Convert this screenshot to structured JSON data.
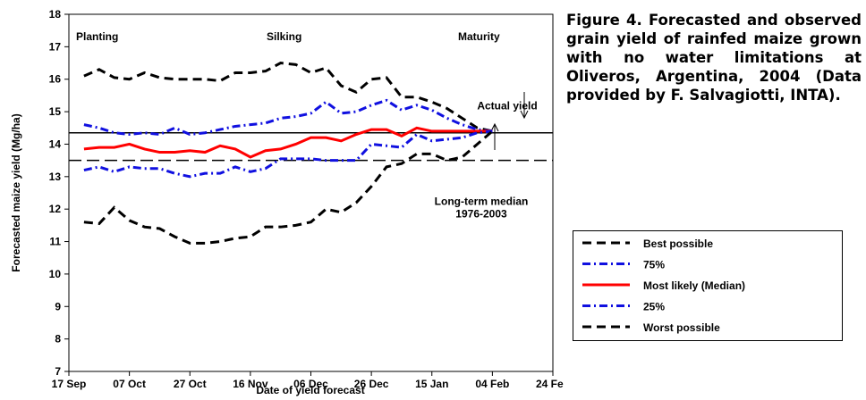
{
  "chart_data": {
    "type": "line",
    "caption": "Figure 4. Forecasted and observed grain yield of rainfed maize grown with no water limitations at Oliveros, Argentina, 2004 (Data provided by F. Salvagiotti, INTA).",
    "x_label": "Date of yield forecast",
    "y_label": "Forecasted maize yield (Mg/ha)",
    "x": [
      5,
      10,
      15,
      20,
      25,
      30,
      35,
      40,
      45,
      50,
      55,
      60,
      65,
      70,
      75,
      80,
      85,
      90,
      95,
      100,
      105,
      110,
      115,
      120,
      125,
      130,
      135,
      140
    ],
    "xlim": [
      0,
      160
    ],
    "xticks": [
      {
        "value": 0,
        "label": "17 Sep"
      },
      {
        "value": 20,
        "label": "07 Oct"
      },
      {
        "value": 40,
        "label": "27 Oct"
      },
      {
        "value": 60,
        "label": "16 Nov"
      },
      {
        "value": 80,
        "label": "06 Dec"
      },
      {
        "value": 100,
        "label": "26 Dec"
      },
      {
        "value": 120,
        "label": "15 Jan"
      },
      {
        "value": 140,
        "label": "04 Feb"
      },
      {
        "value": 160,
        "label": "24 Feb"
      }
    ],
    "ylim": [
      7,
      18
    ],
    "yticks": [
      7,
      8,
      9,
      10,
      11,
      12,
      13,
      14,
      15,
      16,
      17,
      18
    ],
    "series": [
      {
        "name": "Best possible",
        "color": "#000000",
        "dash": "dash",
        "values": [
          16.1,
          16.3,
          16.05,
          16.0,
          16.2,
          16.05,
          16.0,
          16.0,
          16.0,
          15.95,
          16.2,
          16.2,
          16.25,
          16.5,
          16.45,
          16.2,
          16.35,
          15.8,
          15.6,
          16.0,
          16.05,
          15.45,
          15.45,
          15.3,
          15.1,
          14.8,
          14.5,
          14.4
        ]
      },
      {
        "name": "75%",
        "color": "#1010e0",
        "dash": "dashdot",
        "values": [
          14.6,
          14.5,
          14.35,
          14.3,
          14.35,
          14.3,
          14.5,
          14.3,
          14.35,
          14.45,
          14.55,
          14.6,
          14.65,
          14.8,
          14.85,
          14.95,
          15.3,
          14.95,
          15.0,
          15.2,
          15.35,
          15.05,
          15.2,
          15.05,
          14.8,
          14.6,
          14.45,
          14.4
        ]
      },
      {
        "name": "Most likely (Median)",
        "color": "#ff0000",
        "dash": "solid",
        "values": [
          13.85,
          13.9,
          13.9,
          14.0,
          13.85,
          13.75,
          13.75,
          13.8,
          13.75,
          13.95,
          13.85,
          13.6,
          13.8,
          13.85,
          14.0,
          14.2,
          14.2,
          14.1,
          14.3,
          14.45,
          14.45,
          14.25,
          14.5,
          14.4,
          14.4,
          14.4,
          14.4,
          14.4
        ]
      },
      {
        "name": "25%",
        "color": "#1010e0",
        "dash": "dashdot",
        "values": [
          13.2,
          13.3,
          13.15,
          13.3,
          13.25,
          13.25,
          13.1,
          13.0,
          13.1,
          13.1,
          13.3,
          13.15,
          13.25,
          13.55,
          13.55,
          13.55,
          13.5,
          13.5,
          13.5,
          14.0,
          13.95,
          13.9,
          14.3,
          14.1,
          14.15,
          14.2,
          14.35,
          14.4
        ]
      },
      {
        "name": "Worst possible",
        "color": "#000000",
        "dash": "dash",
        "values": [
          11.6,
          11.55,
          12.05,
          11.65,
          11.45,
          11.4,
          11.15,
          10.95,
          10.95,
          11.0,
          11.1,
          11.15,
          11.45,
          11.45,
          11.5,
          11.6,
          12.0,
          11.9,
          12.2,
          12.7,
          13.3,
          13.4,
          13.7,
          13.7,
          13.5,
          13.6,
          14.0,
          14.4
        ]
      }
    ],
    "reference_lines": [
      {
        "label": [
          "Actual yield"
        ],
        "value": 14.35,
        "dash": "solid"
      },
      {
        "label": [
          "Long-term median",
          "1976-2003"
        ],
        "value": 13.5,
        "dash": "longdash"
      }
    ],
    "stages": [
      "Planting",
      "Silking",
      "Maturity"
    ]
  }
}
